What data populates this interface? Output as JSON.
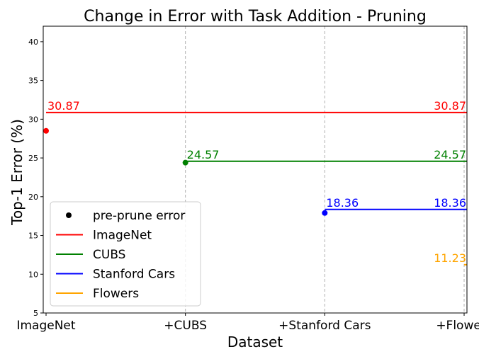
{
  "chart_data": {
    "type": "line",
    "title": "Change in Error with Task Addition - Pruning",
    "xlabel": "Dataset",
    "ylabel": "Top-1 Error (%)",
    "categories": [
      "ImageNet",
      "+CUBS",
      "+Stanford Cars",
      "+Flowers"
    ],
    "ylim": [
      5,
      42
    ],
    "yticks": [
      5,
      10,
      15,
      20,
      25,
      30,
      35,
      40
    ],
    "grid": "vertical dashed at categories",
    "legend_position": "bottom-left",
    "pre_prune_label": "pre-prune error",
    "pre_prune_color": "#000000",
    "series": [
      {
        "name": "ImageNet",
        "color": "#ff0000",
        "start": 0,
        "end": 3,
        "value": 30.87,
        "start_label": "30.87",
        "end_label": "30.87",
        "pre_prune": 28.5
      },
      {
        "name": "CUBS",
        "color": "#008000",
        "start": 1,
        "end": 3,
        "value": 24.57,
        "start_label": "24.57",
        "end_label": "24.57",
        "pre_prune": 24.4
      },
      {
        "name": "Stanford Cars",
        "color": "#0000ff",
        "start": 2,
        "end": 3,
        "value": 18.36,
        "start_label": "18.36",
        "end_label": "18.36",
        "pre_prune": 17.9
      },
      {
        "name": "Flowers",
        "color": "#ffa500",
        "start": 3,
        "end": 3,
        "value": 11.23,
        "start_label": "",
        "end_label": "11.23",
        "pre_prune": null
      }
    ]
  }
}
